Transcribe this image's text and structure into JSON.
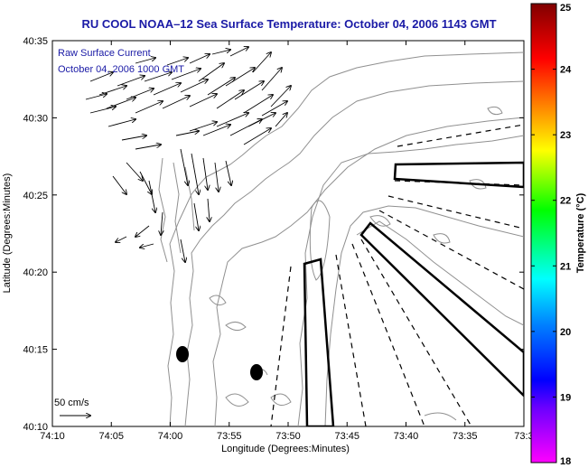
{
  "title": "RU COOL  NOAA–12  Sea Surface Temperature:  October 04, 2006 1143 GMT",
  "annotation": {
    "line1": "Raw Surface Current",
    "line2": "October 04, 2006 1000 GMT"
  },
  "map": {
    "xlabel": "Longitude (Degrees:Minutes)",
    "ylabel": "Latitude (Degrees:Minutes)",
    "x_ticks": [
      "74:10",
      "74:05",
      "74:00",
      "73:55",
      "73:50",
      "73:45",
      "73:40",
      "73:35",
      "73:3"
    ],
    "y_ticks": [
      "40:35",
      "40:30",
      "40:25",
      "40:20",
      "40:15",
      "40:10"
    ],
    "scale_label": "50 cm/s"
  },
  "colorbar": {
    "label": "Temperature (°C)",
    "ticks": [
      "25",
      "24",
      "23",
      "22",
      "21",
      "20",
      "19",
      "18"
    ],
    "min": 18,
    "max": 25,
    "colors": [
      "#ff00ff",
      "#0000ff",
      "#00ffff",
      "#00ff00",
      "#ffff00",
      "#ff8000",
      "#ff0000",
      "#800000"
    ]
  },
  "colors": {
    "title": "#1a1aa6",
    "contour": "#909090",
    "land": "#ffffff"
  }
}
